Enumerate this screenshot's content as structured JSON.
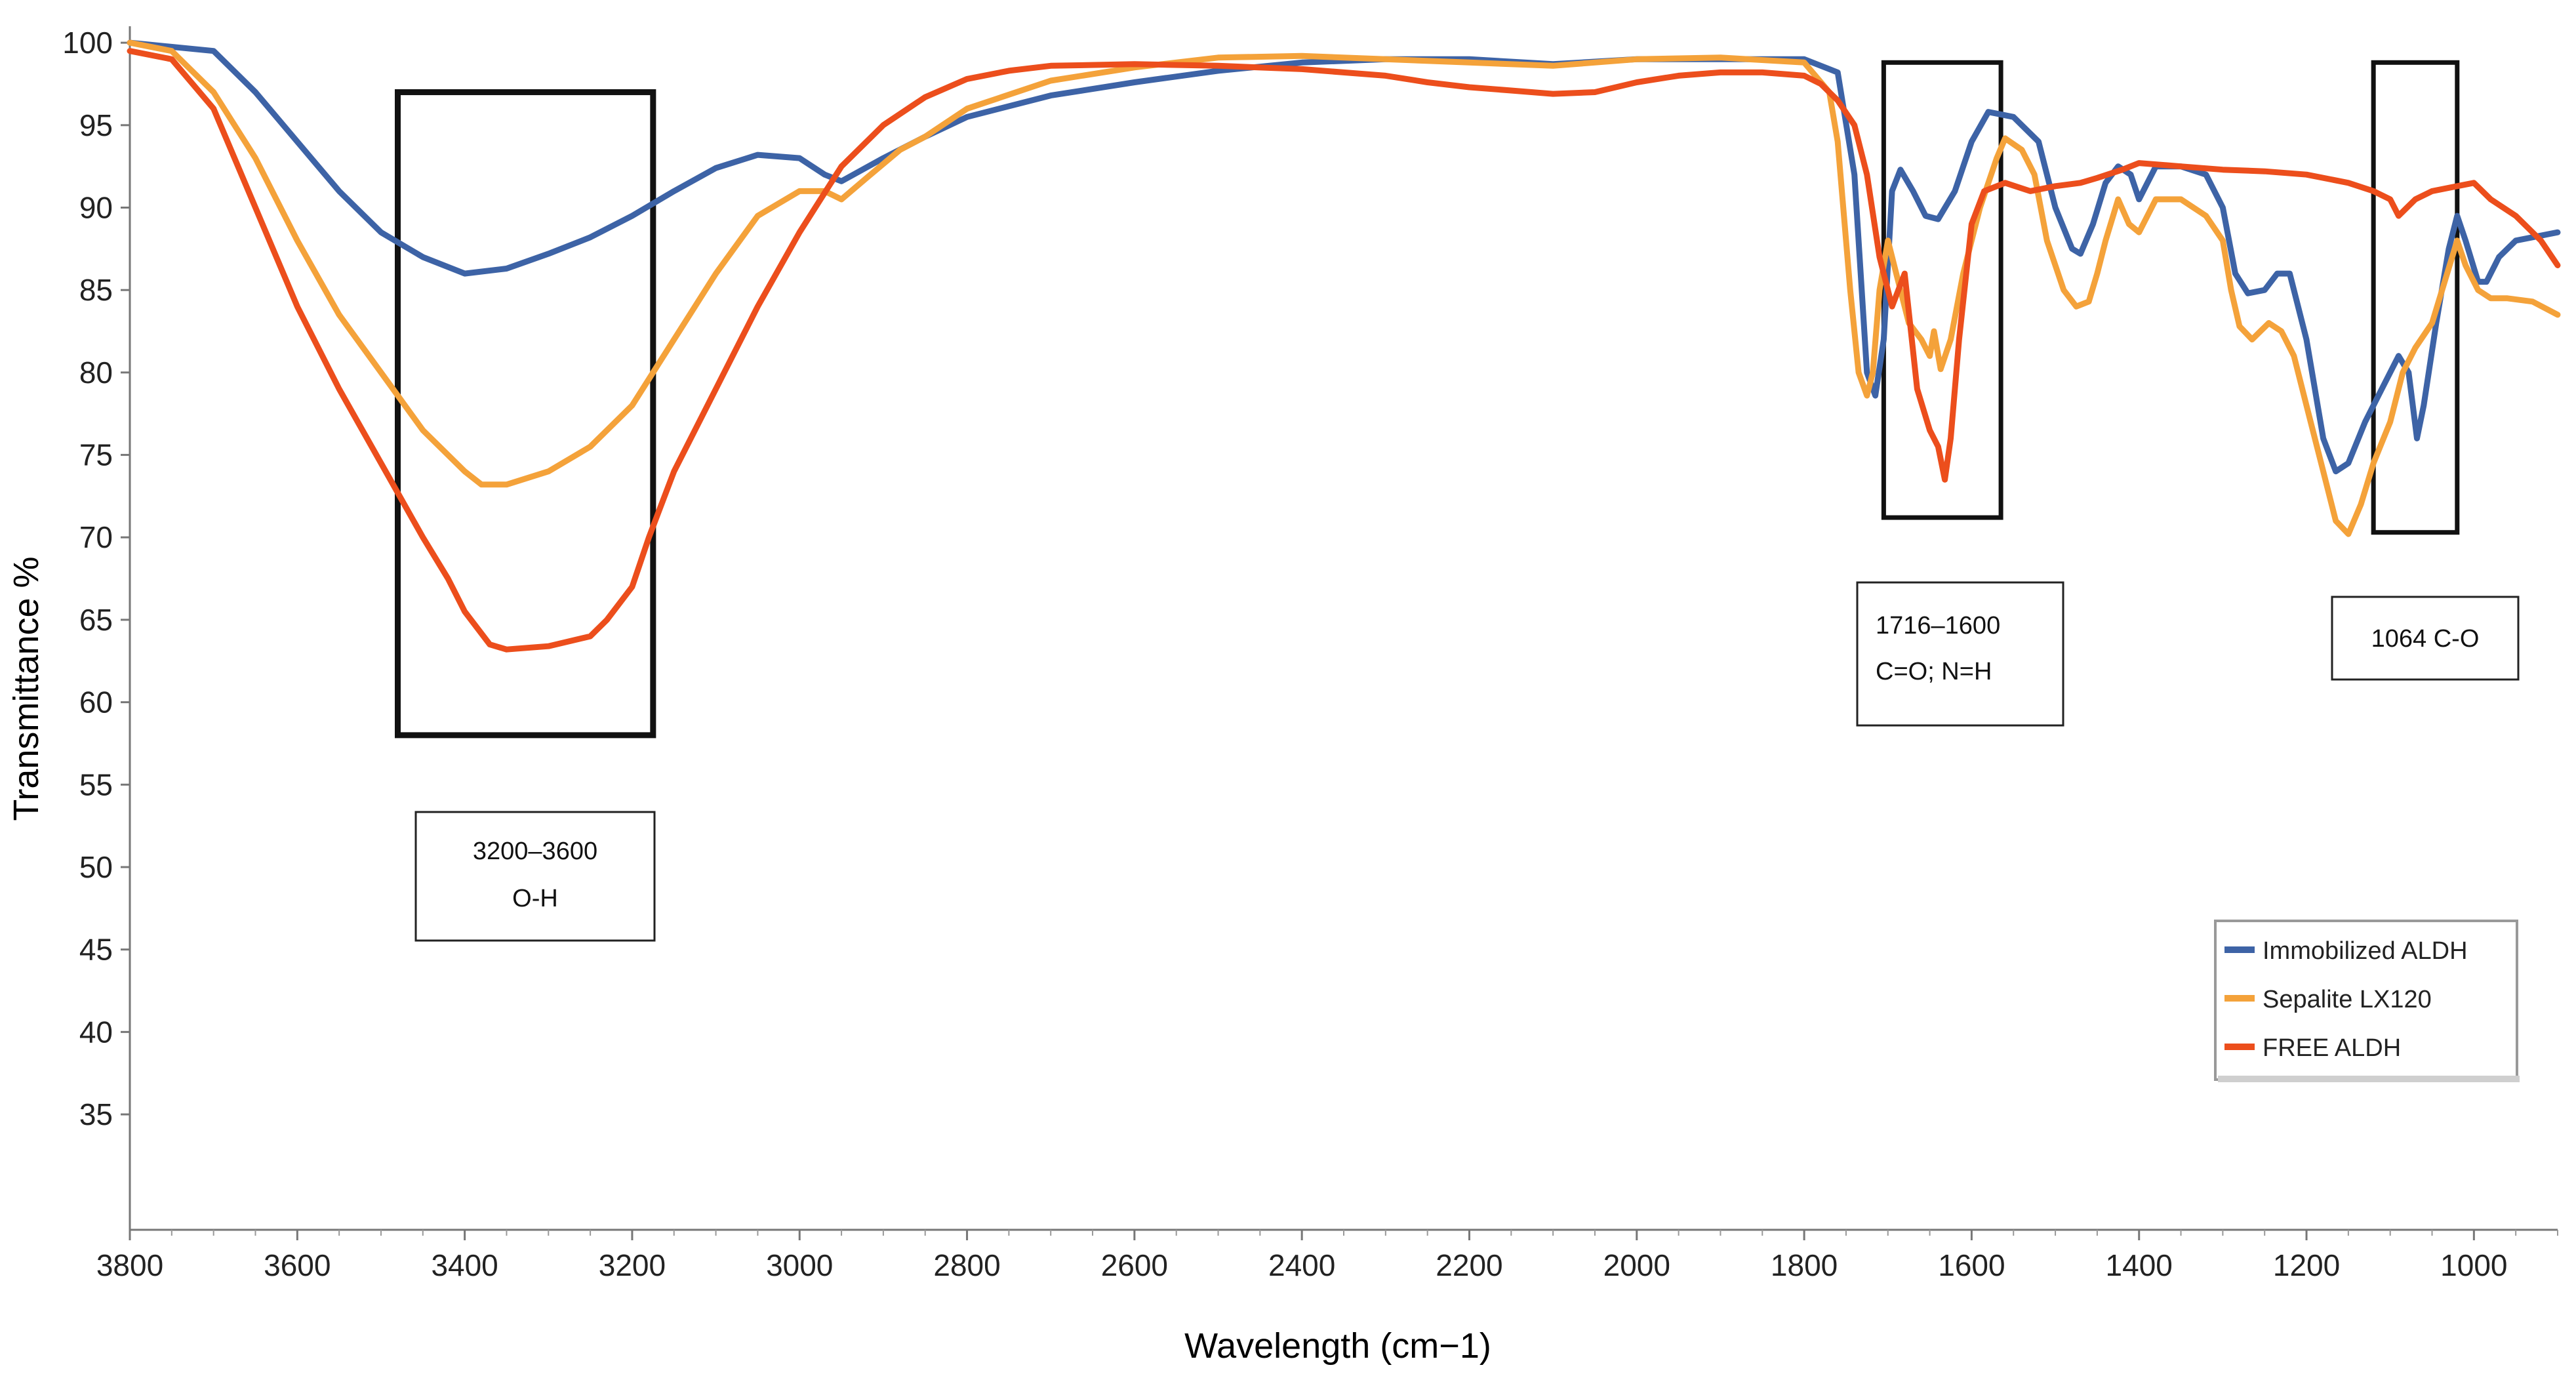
{
  "chart_data": {
    "type": "line",
    "title": "",
    "xlabel": "Wavelength (cm−1)",
    "ylabel": "Transmittance %",
    "xlim": [
      3800,
      900
    ],
    "ylim": [
      28,
      101
    ],
    "x_ticks": [
      3800,
      3600,
      3400,
      3200,
      3000,
      2800,
      2600,
      2400,
      2200,
      2000,
      1800,
      1600,
      1400,
      1200,
      1000
    ],
    "y_ticks": [
      35,
      40,
      45,
      50,
      55,
      60,
      65,
      70,
      75,
      80,
      85,
      90,
      95,
      100
    ],
    "legend_position": "right-lower",
    "series": [
      {
        "name": "Immobilized ALDH",
        "color": "#3d63a6",
        "points": [
          [
            3800,
            100
          ],
          [
            3700,
            99.5
          ],
          [
            3650,
            97
          ],
          [
            3600,
            94
          ],
          [
            3550,
            91
          ],
          [
            3500,
            88.5
          ],
          [
            3450,
            87
          ],
          [
            3400,
            86
          ],
          [
            3350,
            86.3
          ],
          [
            3300,
            87.2
          ],
          [
            3250,
            88.2
          ],
          [
            3200,
            89.5
          ],
          [
            3150,
            91
          ],
          [
            3100,
            92.4
          ],
          [
            3050,
            93.2
          ],
          [
            3000,
            93
          ],
          [
            2970,
            92
          ],
          [
            2950,
            91.6
          ],
          [
            2900,
            93
          ],
          [
            2850,
            94.3
          ],
          [
            2800,
            95.5
          ],
          [
            2700,
            96.8
          ],
          [
            2600,
            97.6
          ],
          [
            2500,
            98.3
          ],
          [
            2400,
            98.8
          ],
          [
            2300,
            99
          ],
          [
            2200,
            99
          ],
          [
            2100,
            98.7
          ],
          [
            2000,
            99
          ],
          [
            1900,
            99
          ],
          [
            1800,
            99
          ],
          [
            1760,
            98.2
          ],
          [
            1740,
            92
          ],
          [
            1725,
            80
          ],
          [
            1715,
            78.6
          ],
          [
            1705,
            82
          ],
          [
            1695,
            91
          ],
          [
            1685,
            92.3
          ],
          [
            1670,
            91
          ],
          [
            1655,
            89.5
          ],
          [
            1640,
            89.3
          ],
          [
            1620,
            91
          ],
          [
            1600,
            94
          ],
          [
            1580,
            95.8
          ],
          [
            1550,
            95.5
          ],
          [
            1520,
            94
          ],
          [
            1500,
            90
          ],
          [
            1480,
            87.5
          ],
          [
            1470,
            87.2
          ],
          [
            1455,
            89
          ],
          [
            1440,
            91.5
          ],
          [
            1425,
            92.5
          ],
          [
            1410,
            92
          ],
          [
            1400,
            90.5
          ],
          [
            1390,
            91.5
          ],
          [
            1380,
            92.5
          ],
          [
            1350,
            92.5
          ],
          [
            1320,
            92
          ],
          [
            1300,
            90
          ],
          [
            1285,
            86
          ],
          [
            1270,
            84.8
          ],
          [
            1250,
            85
          ],
          [
            1235,
            86
          ],
          [
            1220,
            86
          ],
          [
            1200,
            82
          ],
          [
            1180,
            76
          ],
          [
            1165,
            74
          ],
          [
            1150,
            74.5
          ],
          [
            1130,
            77
          ],
          [
            1110,
            79
          ],
          [
            1090,
            81
          ],
          [
            1078,
            80
          ],
          [
            1068,
            76
          ],
          [
            1060,
            78
          ],
          [
            1045,
            83
          ],
          [
            1030,
            87.5
          ],
          [
            1020,
            89.5
          ],
          [
            1010,
            88
          ],
          [
            995,
            85.5
          ],
          [
            985,
            85.5
          ],
          [
            970,
            87
          ],
          [
            950,
            88
          ],
          [
            900,
            88.5
          ]
        ]
      },
      {
        "name": "Sepalite LX120",
        "color": "#f4a23a",
        "points": [
          [
            3800,
            100
          ],
          [
            3750,
            99.5
          ],
          [
            3700,
            97
          ],
          [
            3650,
            93
          ],
          [
            3600,
            88
          ],
          [
            3550,
            83.5
          ],
          [
            3500,
            80
          ],
          [
            3450,
            76.5
          ],
          [
            3400,
            74
          ],
          [
            3380,
            73.2
          ],
          [
            3350,
            73.2
          ],
          [
            3300,
            74
          ],
          [
            3250,
            75.5
          ],
          [
            3200,
            78
          ],
          [
            3150,
            82
          ],
          [
            3100,
            86
          ],
          [
            3050,
            89.5
          ],
          [
            3000,
            91
          ],
          [
            2970,
            91
          ],
          [
            2950,
            90.5
          ],
          [
            2920,
            91.8
          ],
          [
            2880,
            93.5
          ],
          [
            2850,
            94.3
          ],
          [
            2800,
            96
          ],
          [
            2700,
            97.7
          ],
          [
            2600,
            98.5
          ],
          [
            2500,
            99.1
          ],
          [
            2400,
            99.2
          ],
          [
            2300,
            99
          ],
          [
            2200,
            98.8
          ],
          [
            2100,
            98.6
          ],
          [
            2000,
            99
          ],
          [
            1900,
            99.1
          ],
          [
            1800,
            98.8
          ],
          [
            1770,
            97
          ],
          [
            1760,
            94
          ],
          [
            1745,
            85
          ],
          [
            1735,
            80
          ],
          [
            1725,
            78.6
          ],
          [
            1718,
            80
          ],
          [
            1710,
            85
          ],
          [
            1700,
            88
          ],
          [
            1690,
            86
          ],
          [
            1675,
            83
          ],
          [
            1660,
            82
          ],
          [
            1650,
            81
          ],
          [
            1645,
            82.5
          ],
          [
            1637,
            80.2
          ],
          [
            1625,
            82
          ],
          [
            1610,
            86
          ],
          [
            1590,
            90
          ],
          [
            1570,
            93
          ],
          [
            1560,
            94.2
          ],
          [
            1540,
            93.5
          ],
          [
            1525,
            92
          ],
          [
            1510,
            88
          ],
          [
            1490,
            85
          ],
          [
            1475,
            84
          ],
          [
            1460,
            84.3
          ],
          [
            1450,
            86
          ],
          [
            1440,
            88
          ],
          [
            1425,
            90.5
          ],
          [
            1412,
            89
          ],
          [
            1400,
            88.5
          ],
          [
            1390,
            89.5
          ],
          [
            1380,
            90.5
          ],
          [
            1350,
            90.5
          ],
          [
            1320,
            89.5
          ],
          [
            1300,
            88
          ],
          [
            1290,
            85
          ],
          [
            1280,
            82.8
          ],
          [
            1265,
            82
          ],
          [
            1255,
            82.5
          ],
          [
            1245,
            83
          ],
          [
            1230,
            82.5
          ],
          [
            1215,
            81
          ],
          [
            1200,
            78
          ],
          [
            1180,
            74
          ],
          [
            1165,
            71
          ],
          [
            1150,
            70.2
          ],
          [
            1135,
            72
          ],
          [
            1120,
            74.5
          ],
          [
            1100,
            77
          ],
          [
            1085,
            80
          ],
          [
            1070,
            81.5
          ],
          [
            1050,
            83
          ],
          [
            1035,
            85.5
          ],
          [
            1020,
            88
          ],
          [
            1010,
            86.5
          ],
          [
            995,
            85
          ],
          [
            980,
            84.5
          ],
          [
            960,
            84.5
          ],
          [
            930,
            84.3
          ],
          [
            900,
            83.5
          ]
        ]
      },
      {
        "name": "FREE ALDH",
        "color": "#ec4e1c",
        "points": [
          [
            3800,
            99.5
          ],
          [
            3750,
            99
          ],
          [
            3700,
            96
          ],
          [
            3650,
            90
          ],
          [
            3600,
            84
          ],
          [
            3550,
            79
          ],
          [
            3500,
            74.5
          ],
          [
            3450,
            70
          ],
          [
            3420,
            67.5
          ],
          [
            3400,
            65.5
          ],
          [
            3370,
            63.5
          ],
          [
            3350,
            63.2
          ],
          [
            3300,
            63.4
          ],
          [
            3250,
            64
          ],
          [
            3230,
            65
          ],
          [
            3200,
            67
          ],
          [
            3180,
            70
          ],
          [
            3150,
            74
          ],
          [
            3100,
            79
          ],
          [
            3050,
            84
          ],
          [
            3000,
            88.5
          ],
          [
            2950,
            92.5
          ],
          [
            2900,
            95
          ],
          [
            2850,
            96.7
          ],
          [
            2800,
            97.8
          ],
          [
            2750,
            98.3
          ],
          [
            2700,
            98.6
          ],
          [
            2600,
            98.7
          ],
          [
            2500,
            98.6
          ],
          [
            2400,
            98.4
          ],
          [
            2300,
            98
          ],
          [
            2250,
            97.6
          ],
          [
            2200,
            97.3
          ],
          [
            2150,
            97.1
          ],
          [
            2100,
            96.9
          ],
          [
            2050,
            97
          ],
          [
            2000,
            97.6
          ],
          [
            1950,
            98
          ],
          [
            1900,
            98.2
          ],
          [
            1850,
            98.2
          ],
          [
            1800,
            98
          ],
          [
            1780,
            97.5
          ],
          [
            1760,
            96.5
          ],
          [
            1740,
            95
          ],
          [
            1725,
            92
          ],
          [
            1710,
            87
          ],
          [
            1695,
            84
          ],
          [
            1680,
            86
          ],
          [
            1665,
            79
          ],
          [
            1650,
            76.5
          ],
          [
            1640,
            75.5
          ],
          [
            1632,
            73.5
          ],
          [
            1625,
            76
          ],
          [
            1615,
            82
          ],
          [
            1600,
            89
          ],
          [
            1585,
            91
          ],
          [
            1560,
            91.5
          ],
          [
            1530,
            91
          ],
          [
            1500,
            91.3
          ],
          [
            1470,
            91.5
          ],
          [
            1450,
            91.8
          ],
          [
            1420,
            92.3
          ],
          [
            1400,
            92.7
          ],
          [
            1350,
            92.5
          ],
          [
            1300,
            92.3
          ],
          [
            1250,
            92.2
          ],
          [
            1200,
            92
          ],
          [
            1150,
            91.5
          ],
          [
            1120,
            91
          ],
          [
            1100,
            90.5
          ],
          [
            1090,
            89.5
          ],
          [
            1080,
            90
          ],
          [
            1070,
            90.5
          ],
          [
            1050,
            91
          ],
          [
            1020,
            91.3
          ],
          [
            1000,
            91.5
          ],
          [
            980,
            90.5
          ],
          [
            950,
            89.5
          ],
          [
            920,
            88
          ],
          [
            900,
            86.5
          ]
        ]
      }
    ],
    "annotations": [
      {
        "name": "oh-band",
        "range": [
          3480,
          3175
        ],
        "y_range": [
          58,
          97
        ],
        "lines": [
          "3200–3600",
          "O-H"
        ]
      },
      {
        "name": "co-nh-band",
        "range": [
          1705,
          1565
        ],
        "y_range": [
          71.2,
          98.8
        ],
        "lines": [
          "1716–1600",
          "C=O; N=H"
        ]
      },
      {
        "name": "c-o-band",
        "range": [
          1120,
          1020
        ],
        "y_range": [
          70.3,
          98.8
        ],
        "lines": [
          "1064 C-O"
        ]
      }
    ]
  }
}
